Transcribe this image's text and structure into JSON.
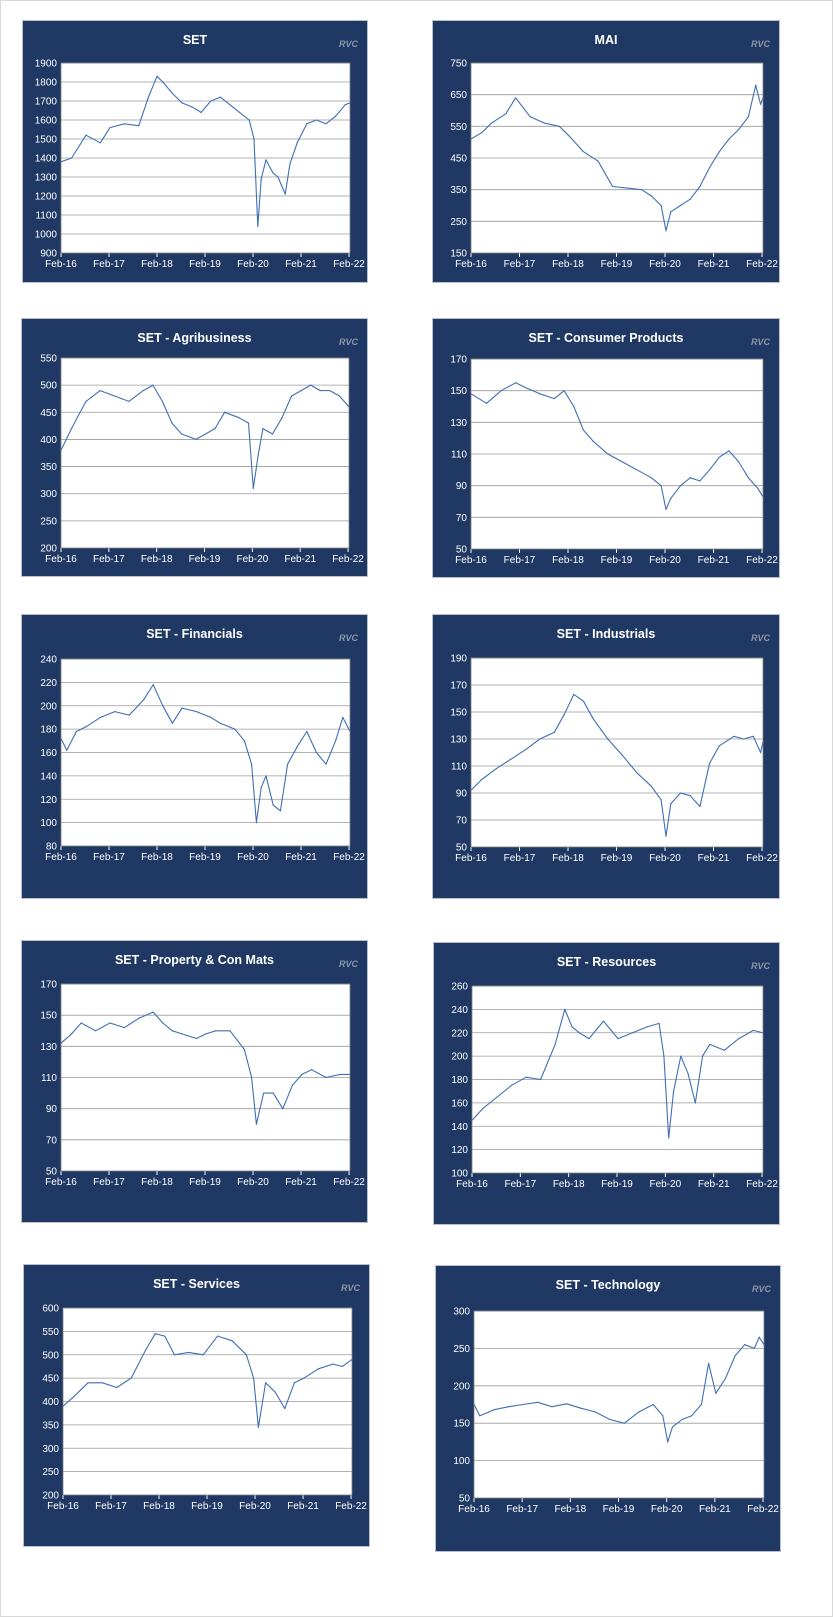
{
  "credit": "RVC",
  "colors": {
    "panel": "#1f3864",
    "plot": "#ffffff",
    "line": "#3f6fb3",
    "grid": "#9a9a9a"
  },
  "x_tick_labels": [
    "Feb-16",
    "Feb-17",
    "Feb-18",
    "Feb-19",
    "Feb-20",
    "Feb-21",
    "Feb-22"
  ],
  "chart_data": [
    {
      "type": "line",
      "title": "SET",
      "ylim": [
        900,
        1900
      ],
      "yticks": [
        "900",
        "1000",
        "1100",
        "1200",
        "1300",
        "1400",
        "1500",
        "1600",
        "1700",
        "1800",
        "1900"
      ],
      "series": [
        {
          "x": [
            2016.08,
            2016.3,
            2016.6,
            2016.9,
            2017.1,
            2017.4,
            2017.7,
            2017.9,
            2018.08,
            2018.2,
            2018.4,
            2018.6,
            2018.8,
            2019.0,
            2019.2,
            2019.4,
            2019.6,
            2019.8,
            2020.0,
            2020.1,
            2020.18,
            2020.25,
            2020.35,
            2020.5,
            2020.6,
            2020.75,
            2020.85,
            2021.0,
            2021.2,
            2021.4,
            2021.6,
            2021.8,
            2022.0,
            2022.1
          ],
          "y": [
            1380,
            1400,
            1520,
            1480,
            1560,
            1580,
            1570,
            1720,
            1830,
            1800,
            1740,
            1690,
            1670,
            1640,
            1700,
            1720,
            1680,
            1640,
            1600,
            1500,
            1040,
            1290,
            1390,
            1320,
            1300,
            1210,
            1370,
            1480,
            1580,
            1600,
            1580,
            1620,
            1680,
            1690
          ]
        }
      ]
    },
    {
      "type": "line",
      "title": "MAI",
      "ylim": [
        150,
        750
      ],
      "yticks": [
        "150",
        "250",
        "350",
        "450",
        "550",
        "650",
        "750"
      ],
      "series": [
        {
          "x": [
            2016.08,
            2016.3,
            2016.5,
            2016.8,
            2017.0,
            2017.3,
            2017.6,
            2017.9,
            2018.1,
            2018.4,
            2018.7,
            2019.0,
            2019.3,
            2019.6,
            2019.8,
            2020.0,
            2020.1,
            2020.2,
            2020.4,
            2020.6,
            2020.8,
            2021.0,
            2021.2,
            2021.4,
            2021.6,
            2021.8,
            2021.95,
            2022.05,
            2022.1
          ],
          "y": [
            510,
            530,
            560,
            590,
            640,
            580,
            560,
            550,
            520,
            470,
            440,
            360,
            355,
            350,
            330,
            300,
            220,
            280,
            300,
            320,
            360,
            420,
            470,
            510,
            540,
            580,
            680,
            620,
            640
          ]
        }
      ]
    },
    {
      "type": "line",
      "title": "SET - Agribusiness",
      "ylim": [
        200,
        550
      ],
      "yticks": [
        "200",
        "250",
        "300",
        "350",
        "400",
        "450",
        "500",
        "550"
      ],
      "series": [
        {
          "x": [
            2016.08,
            2016.3,
            2016.6,
            2016.9,
            2017.2,
            2017.5,
            2017.8,
            2018.0,
            2018.2,
            2018.4,
            2018.6,
            2018.9,
            2019.1,
            2019.3,
            2019.5,
            2019.8,
            2020.0,
            2020.1,
            2020.2,
            2020.3,
            2020.5,
            2020.7,
            2020.9,
            2021.1,
            2021.3,
            2021.5,
            2021.7,
            2021.9,
            2022.1
          ],
          "y": [
            380,
            420,
            470,
            490,
            480,
            470,
            490,
            500,
            470,
            430,
            410,
            400,
            410,
            420,
            450,
            440,
            430,
            310,
            370,
            420,
            410,
            440,
            480,
            490,
            500,
            490,
            490,
            480,
            460
          ]
        }
      ]
    },
    {
      "type": "line",
      "title": "SET - Consumer Products",
      "ylim": [
        50,
        170
      ],
      "yticks": [
        "50",
        "70",
        "90",
        "110",
        "130",
        "150",
        "170"
      ],
      "series": [
        {
          "x": [
            2016.08,
            2016.4,
            2016.7,
            2017.0,
            2017.2,
            2017.5,
            2017.8,
            2018.0,
            2018.2,
            2018.4,
            2018.6,
            2018.9,
            2019.2,
            2019.5,
            2019.8,
            2020.0,
            2020.1,
            2020.2,
            2020.4,
            2020.6,
            2020.8,
            2021.0,
            2021.2,
            2021.4,
            2021.6,
            2021.8,
            2022.0,
            2022.1
          ],
          "y": [
            148,
            142,
            150,
            155,
            152,
            148,
            145,
            150,
            140,
            125,
            118,
            110,
            105,
            100,
            95,
            90,
            75,
            82,
            90,
            95,
            93,
            100,
            108,
            112,
            105,
            95,
            88,
            83
          ]
        }
      ]
    },
    {
      "type": "line",
      "title": "SET - Financials",
      "ylim": [
        80,
        240
      ],
      "yticks": [
        "80",
        "100",
        "120",
        "140",
        "160",
        "180",
        "200",
        "220",
        "240"
      ],
      "series": [
        {
          "x": [
            2016.08,
            2016.2,
            2016.4,
            2016.6,
            2016.9,
            2017.2,
            2017.5,
            2017.8,
            2018.0,
            2018.2,
            2018.4,
            2018.6,
            2018.9,
            2019.2,
            2019.4,
            2019.7,
            2019.9,
            2020.05,
            2020.15,
            2020.25,
            2020.35,
            2020.5,
            2020.65,
            2020.8,
            2021.0,
            2021.2,
            2021.4,
            2021.6,
            2021.8,
            2021.95,
            2022.05,
            2022.1
          ],
          "y": [
            172,
            162,
            178,
            182,
            190,
            195,
            192,
            205,
            218,
            200,
            185,
            198,
            195,
            190,
            185,
            180,
            170,
            150,
            100,
            130,
            140,
            115,
            110,
            150,
            165,
            178,
            160,
            150,
            170,
            190,
            182,
            178
          ]
        }
      ]
    },
    {
      "type": "line",
      "title": "SET - Industrials",
      "ylim": [
        50,
        190
      ],
      "yticks": [
        "50",
        "70",
        "90",
        "110",
        "130",
        "150",
        "170",
        "190"
      ],
      "series": [
        {
          "x": [
            2016.08,
            2016.3,
            2016.6,
            2016.9,
            2017.2,
            2017.5,
            2017.8,
            2018.0,
            2018.2,
            2018.4,
            2018.6,
            2018.9,
            2019.2,
            2019.5,
            2019.8,
            2020.0,
            2020.1,
            2020.2,
            2020.4,
            2020.6,
            2020.8,
            2021.0,
            2021.2,
            2021.5,
            2021.7,
            2021.9,
            2022.05,
            2022.1
          ],
          "y": [
            92,
            100,
            108,
            115,
            122,
            130,
            135,
            148,
            163,
            158,
            145,
            130,
            118,
            105,
            95,
            85,
            58,
            82,
            90,
            88,
            80,
            112,
            125,
            132,
            130,
            132,
            120,
            128
          ]
        }
      ]
    },
    {
      "type": "line",
      "title": "SET - Property & Con Mats",
      "ylim": [
        50,
        170
      ],
      "yticks": [
        "50",
        "70",
        "90",
        "110",
        "130",
        "150",
        "170"
      ],
      "series": [
        {
          "x": [
            2016.08,
            2016.3,
            2016.5,
            2016.8,
            2017.1,
            2017.4,
            2017.7,
            2018.0,
            2018.2,
            2018.4,
            2018.6,
            2018.9,
            2019.1,
            2019.3,
            2019.6,
            2019.9,
            2020.05,
            2020.15,
            2020.3,
            2020.5,
            2020.7,
            2020.9,
            2021.1,
            2021.3,
            2021.6,
            2021.9,
            2022.1
          ],
          "y": [
            132,
            138,
            145,
            140,
            145,
            142,
            148,
            152,
            145,
            140,
            138,
            135,
            138,
            140,
            140,
            128,
            110,
            80,
            100,
            100,
            90,
            105,
            112,
            115,
            110,
            112,
            112
          ]
        }
      ]
    },
    {
      "type": "line",
      "title": "SET - Resources",
      "ylim": [
        100,
        260
      ],
      "yticks": [
        "100",
        "120",
        "140",
        "160",
        "180",
        "200",
        "220",
        "240",
        "260"
      ],
      "series": [
        {
          "x": [
            2016.08,
            2016.3,
            2016.6,
            2016.9,
            2017.2,
            2017.5,
            2017.8,
            2018.0,
            2018.15,
            2018.3,
            2018.5,
            2018.8,
            2019.1,
            2019.4,
            2019.7,
            2019.95,
            2020.05,
            2020.15,
            2020.25,
            2020.4,
            2020.55,
            2020.7,
            2020.85,
            2021.0,
            2021.3,
            2021.6,
            2021.9,
            2022.1
          ],
          "y": [
            145,
            155,
            165,
            175,
            182,
            180,
            210,
            240,
            225,
            220,
            215,
            230,
            215,
            220,
            225,
            228,
            200,
            130,
            170,
            200,
            185,
            160,
            200,
            210,
            205,
            215,
            222,
            220
          ]
        }
      ]
    },
    {
      "type": "line",
      "title": "SET - Services",
      "ylim": [
        200,
        600
      ],
      "yticks": [
        "200",
        "250",
        "300",
        "350",
        "400",
        "450",
        "500",
        "550",
        "600"
      ],
      "series": [
        {
          "x": [
            2016.08,
            2016.3,
            2016.6,
            2016.9,
            2017.2,
            2017.5,
            2017.8,
            2018.0,
            2018.2,
            2018.4,
            2018.7,
            2019.0,
            2019.3,
            2019.6,
            2019.9,
            2020.05,
            2020.15,
            2020.3,
            2020.5,
            2020.7,
            2020.9,
            2021.1,
            2021.4,
            2021.7,
            2021.9,
            2022.1
          ],
          "y": [
            390,
            410,
            440,
            440,
            430,
            450,
            510,
            545,
            540,
            500,
            505,
            500,
            540,
            530,
            500,
            450,
            345,
            440,
            420,
            385,
            440,
            450,
            470,
            480,
            475,
            490
          ]
        }
      ]
    },
    {
      "type": "line",
      "title": "SET - Technology",
      "ylim": [
        50,
        300
      ],
      "yticks": [
        "50",
        "100",
        "150",
        "200",
        "250",
        "300"
      ],
      "series": [
        {
          "x": [
            2016.08,
            2016.2,
            2016.5,
            2016.8,
            2017.1,
            2017.4,
            2017.7,
            2018.0,
            2018.3,
            2018.6,
            2018.9,
            2019.2,
            2019.5,
            2019.8,
            2020.0,
            2020.1,
            2020.2,
            2020.4,
            2020.6,
            2020.8,
            2020.95,
            2021.1,
            2021.3,
            2021.5,
            2021.7,
            2021.9,
            2022.0,
            2022.1
          ],
          "y": [
            175,
            160,
            168,
            172,
            175,
            178,
            172,
            176,
            170,
            165,
            155,
            150,
            165,
            175,
            160,
            125,
            145,
            155,
            160,
            175,
            230,
            190,
            210,
            240,
            255,
            250,
            265,
            255
          ]
        }
      ]
    }
  ]
}
